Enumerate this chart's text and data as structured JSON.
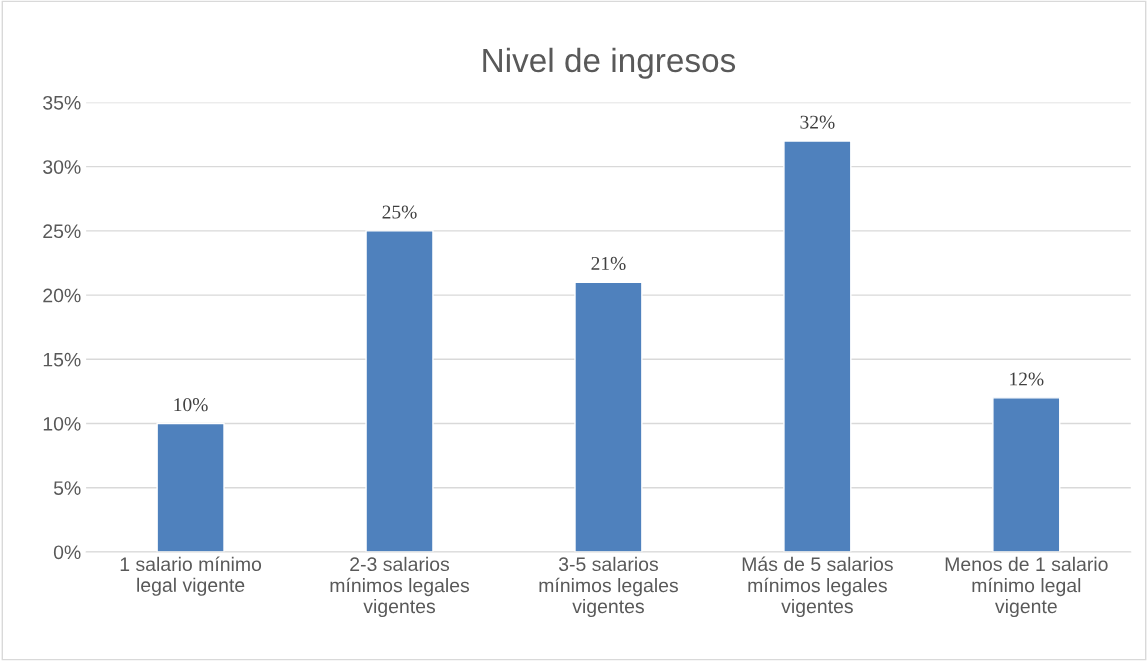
{
  "chart_data": {
    "type": "bar",
    "title": "Nivel de ingresos",
    "categories": [
      "1 salario mínimo\nlegal vigente",
      "2-3 salarios\nmínimos legales\nvigentes",
      "3-5 salarios\nmínimos legales\nvigentes",
      "Más de 5 salarios\nmínimos legales\nvigentes",
      "Menos de 1 salario\nmínimo legal\nvigente"
    ],
    "values": [
      10,
      25,
      21,
      32,
      12
    ],
    "color": "#4f81bd",
    "value_labels": [
      "10%",
      "25%",
      "21%",
      "32%",
      "12%"
    ],
    "ylim": [
      0,
      35
    ],
    "yticks": [
      {
        "value": 0,
        "label": "0%"
      },
      {
        "value": 5,
        "label": "5%"
      },
      {
        "value": 10,
        "label": "10%"
      },
      {
        "value": 15,
        "label": "15%"
      },
      {
        "value": 20,
        "label": "20%"
      },
      {
        "value": 25,
        "label": "25%"
      },
      {
        "value": 30,
        "label": "30%"
      },
      {
        "value": 35,
        "label": "35%"
      }
    ],
    "grid": "y",
    "legend": false
  }
}
